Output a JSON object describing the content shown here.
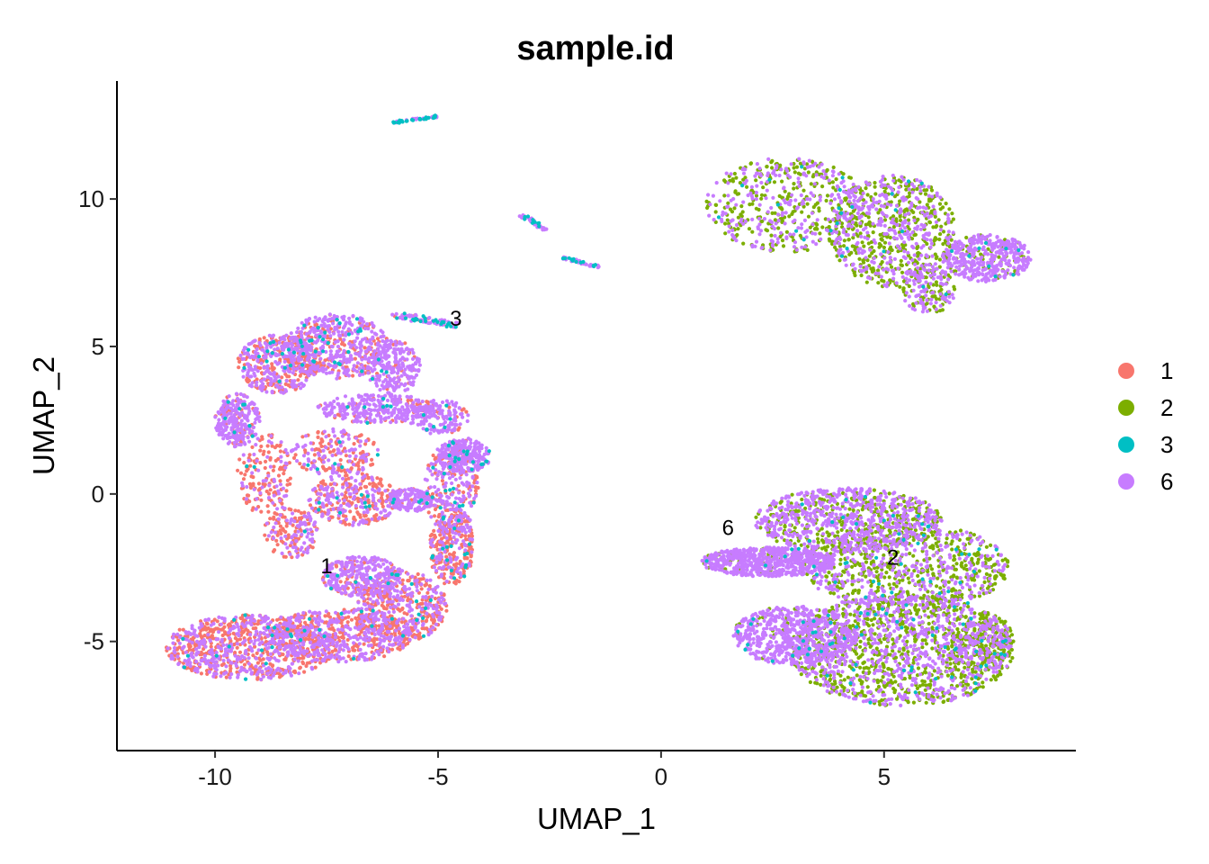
{
  "chart_data": {
    "type": "scatter",
    "title": "sample.id",
    "xlabel": "UMAP_1",
    "ylabel": "UMAP_2",
    "xlim": [
      -12.2,
      9.3
    ],
    "ylim": [
      -8.7,
      14.0
    ],
    "x_ticks": [
      -10,
      -5,
      0,
      5
    ],
    "x_tick_labels": [
      "-10",
      "-5",
      "0",
      "5"
    ],
    "y_ticks": [
      -5,
      0,
      5,
      10
    ],
    "y_tick_labels": [
      "-5",
      "0",
      "5",
      "10"
    ],
    "grid": false,
    "legend_position": "right",
    "series": [
      {
        "name": "1",
        "color": "#F8766D"
      },
      {
        "name": "2",
        "color": "#7CAE00"
      },
      {
        "name": "3",
        "color": "#00BFC4"
      },
      {
        "name": "6",
        "color": "#C77CFF"
      }
    ],
    "cluster_labels": [
      {
        "text": "3",
        "x": -4.6,
        "y": 5.9
      },
      {
        "text": "1",
        "x": -7.5,
        "y": -2.5
      },
      {
        "text": "6",
        "x": 1.5,
        "y": -1.2
      },
      {
        "text": "2",
        "x": 5.2,
        "y": -2.2
      }
    ],
    "regions": [
      {
        "shape": "ellipse",
        "cx": -9.2,
        "cy": -5.2,
        "rx": 1.9,
        "ry": 1.1,
        "n": 900,
        "mix": [
          0.55,
          0,
          0.02,
          0.43
        ]
      },
      {
        "shape": "ellipse",
        "cx": -7.2,
        "cy": -4.8,
        "rx": 1.6,
        "ry": 0.9,
        "n": 550,
        "mix": [
          0.45,
          0,
          0.02,
          0.53
        ]
      },
      {
        "shape": "ellipse",
        "cx": -5.8,
        "cy": -3.8,
        "rx": 1.0,
        "ry": 1.2,
        "n": 480,
        "mix": [
          0.55,
          0,
          0.03,
          0.42
        ]
      },
      {
        "shape": "ellipse",
        "cx": -6.7,
        "cy": -2.8,
        "rx": 0.9,
        "ry": 0.7,
        "n": 320,
        "mix": [
          0.2,
          0,
          0.02,
          0.78
        ]
      },
      {
        "shape": "ellipse",
        "cx": -4.7,
        "cy": -1.8,
        "rx": 0.5,
        "ry": 1.3,
        "n": 300,
        "mix": [
          0.6,
          0,
          0.06,
          0.34
        ]
      },
      {
        "shape": "ellipse",
        "cx": -4.7,
        "cy": 0.2,
        "rx": 0.6,
        "ry": 1.6,
        "n": 280,
        "mix": [
          0.3,
          0,
          0.06,
          0.64
        ]
      },
      {
        "shape": "ellipse",
        "cx": -4.4,
        "cy": 1.3,
        "rx": 0.6,
        "ry": 0.6,
        "n": 260,
        "mix": [
          0.05,
          0,
          0.03,
          0.92
        ]
      },
      {
        "shape": "ellipse",
        "cx": -6.9,
        "cy": -0.2,
        "rx": 1.0,
        "ry": 0.9,
        "n": 340,
        "mix": [
          0.55,
          0,
          0.02,
          0.43
        ]
      },
      {
        "shape": "ellipse",
        "cx": -5.6,
        "cy": -0.2,
        "rx": 0.5,
        "ry": 0.4,
        "n": 160,
        "mix": [
          0.1,
          0,
          0.03,
          0.87
        ]
      },
      {
        "shape": "ellipse",
        "cx": -8.3,
        "cy": -1.3,
        "rx": 0.6,
        "ry": 0.9,
        "n": 160,
        "mix": [
          0.6,
          0,
          0.02,
          0.38
        ]
      },
      {
        "shape": "ellipse",
        "cx": -8.9,
        "cy": 0.7,
        "rx": 0.6,
        "ry": 1.4,
        "n": 170,
        "mix": [
          0.65,
          0,
          0.02,
          0.33
        ]
      },
      {
        "shape": "ellipse",
        "cx": -9.5,
        "cy": 2.5,
        "rx": 0.5,
        "ry": 0.9,
        "n": 260,
        "mix": [
          0.2,
          0,
          0.02,
          0.78
        ]
      },
      {
        "shape": "ellipse",
        "cx": -8.6,
        "cy": 4.4,
        "rx": 0.9,
        "ry": 1.0,
        "n": 450,
        "mix": [
          0.4,
          0,
          0.03,
          0.57
        ]
      },
      {
        "shape": "ellipse",
        "cx": -7.3,
        "cy": 5.0,
        "rx": 1.2,
        "ry": 1.1,
        "n": 520,
        "mix": [
          0.3,
          0,
          0.05,
          0.65
        ]
      },
      {
        "shape": "ellipse",
        "cx": -6.0,
        "cy": 4.3,
        "rx": 0.6,
        "ry": 0.9,
        "n": 220,
        "mix": [
          0.1,
          0,
          0.03,
          0.87
        ]
      },
      {
        "shape": "ellipse",
        "cx": -6.4,
        "cy": 2.9,
        "rx": 1.3,
        "ry": 0.5,
        "n": 300,
        "mix": [
          0.1,
          0,
          0.03,
          0.87
        ]
      },
      {
        "shape": "ellipse",
        "cx": -7.3,
        "cy": 1.4,
        "rx": 1.0,
        "ry": 0.8,
        "n": 200,
        "mix": [
          0.55,
          0,
          0.02,
          0.43
        ]
      },
      {
        "shape": "ellipse",
        "cx": -5.0,
        "cy": 2.6,
        "rx": 0.7,
        "ry": 0.6,
        "n": 160,
        "mix": [
          0.15,
          0,
          0.05,
          0.8
        ]
      },
      {
        "shape": "line",
        "x1": -6.0,
        "y1": 6.1,
        "x2": -4.6,
        "y2": 5.7,
        "w": 0.22,
        "n": 80,
        "mix": [
          0.05,
          0,
          0.35,
          0.6
        ]
      },
      {
        "shape": "line",
        "x1": -6.0,
        "y1": 12.6,
        "x2": -5.0,
        "y2": 12.8,
        "w": 0.08,
        "n": 45,
        "mix": [
          0,
          0,
          0.55,
          0.45
        ]
      },
      {
        "shape": "line",
        "x1": -3.2,
        "y1": 9.5,
        "x2": -2.6,
        "y2": 9.0,
        "w": 0.12,
        "n": 45,
        "mix": [
          0,
          0,
          0.2,
          0.8
        ]
      },
      {
        "shape": "line",
        "x1": -2.2,
        "y1": 8.0,
        "x2": -1.4,
        "y2": 7.7,
        "w": 0.1,
        "n": 40,
        "mix": [
          0,
          0,
          0.25,
          0.75
        ]
      },
      {
        "shape": "ellipse",
        "cx": 2.8,
        "cy": 9.8,
        "rx": 1.8,
        "ry": 1.6,
        "n": 550,
        "mix": [
          0,
          0.55,
          0.02,
          0.43
        ]
      },
      {
        "shape": "ellipse",
        "cx": 5.2,
        "cy": 8.9,
        "rx": 1.4,
        "ry": 1.9,
        "n": 750,
        "mix": [
          0,
          0.55,
          0.02,
          0.43
        ]
      },
      {
        "shape": "ellipse",
        "cx": 7.3,
        "cy": 8.0,
        "rx": 1.0,
        "ry": 0.8,
        "n": 420,
        "mix": [
          0,
          0.12,
          0.01,
          0.87
        ]
      },
      {
        "shape": "ellipse",
        "cx": 6.0,
        "cy": 6.9,
        "rx": 0.6,
        "ry": 0.8,
        "n": 160,
        "mix": [
          0,
          0.4,
          0.02,
          0.58
        ]
      },
      {
        "shape": "ellipse",
        "cx": 2.4,
        "cy": -2.3,
        "rx": 1.5,
        "ry": 0.5,
        "n": 650,
        "mix": [
          0,
          0.1,
          0.02,
          0.88
        ]
      },
      {
        "shape": "ellipse",
        "cx": 4.2,
        "cy": -0.9,
        "rx": 2.1,
        "ry": 1.1,
        "n": 900,
        "mix": [
          0,
          0.35,
          0.02,
          0.63
        ]
      },
      {
        "shape": "ellipse",
        "cx": 5.5,
        "cy": -2.5,
        "rx": 2.3,
        "ry": 1.5,
        "n": 900,
        "mix": [
          0,
          0.55,
          0.03,
          0.42
        ]
      },
      {
        "shape": "ellipse",
        "cx": 3.0,
        "cy": -4.8,
        "rx": 1.4,
        "ry": 1.0,
        "n": 650,
        "mix": [
          0,
          0.08,
          0.02,
          0.9
        ]
      },
      {
        "shape": "ellipse",
        "cx": 5.4,
        "cy": -5.3,
        "rx": 2.5,
        "ry": 1.9,
        "n": 1500,
        "mix": [
          0,
          0.48,
          0.03,
          0.49
        ]
      },
      {
        "shape": "ellipse",
        "cx": 7.2,
        "cy": -5.0,
        "rx": 0.7,
        "ry": 1.0,
        "n": 250,
        "mix": [
          0,
          0.6,
          0.02,
          0.38
        ]
      }
    ]
  }
}
